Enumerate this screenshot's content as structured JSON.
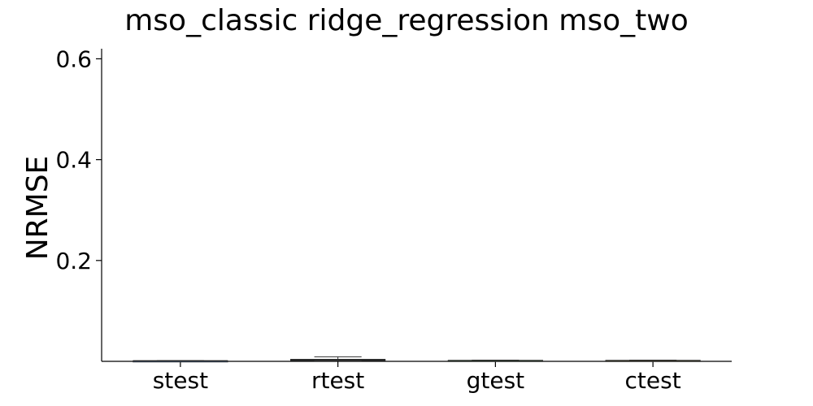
{
  "chart_data": {
    "type": "box",
    "title": "mso_classic ridge_regression mso_two",
    "xlabel": "",
    "ylabel": "NRMSE",
    "categories": [
      "stest",
      "rtest",
      "gtest",
      "ctest"
    ],
    "yticks": [
      0.2,
      0.4,
      0.6
    ],
    "ylim": [
      0.0,
      0.62
    ],
    "grid": false,
    "boxes": [
      {
        "name": "stest",
        "whisker_low": 0.0005,
        "q1": 0.0008,
        "median": 0.001,
        "q3": 0.0012,
        "whisker_high": 0.0015,
        "color": "#3a6fb0"
      },
      {
        "name": "rtest",
        "whisker_low": 0.001,
        "q1": 0.002,
        "median": 0.003,
        "q3": 0.004,
        "whisker_high": 0.009,
        "color": "#2a9d8f"
      },
      {
        "name": "gtest",
        "whisker_low": 0.0005,
        "q1": 0.001,
        "median": 0.0015,
        "q3": 0.002,
        "whisker_high": 0.0025,
        "color": "#4a8a4a"
      },
      {
        "name": "ctest",
        "whisker_low": 0.0005,
        "q1": 0.001,
        "median": 0.0015,
        "q3": 0.002,
        "whisker_high": 0.0025,
        "color": "#8a7a3a"
      }
    ]
  }
}
